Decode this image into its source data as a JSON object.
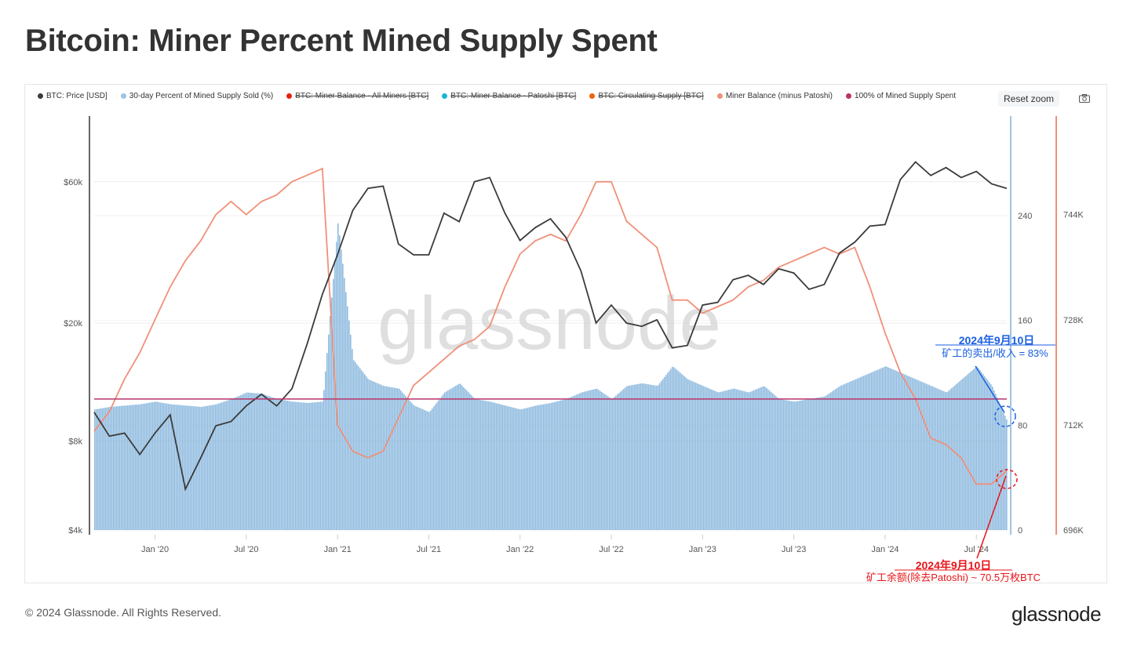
{
  "title": "Bitcoin: Miner Percent Mined Supply Spent",
  "legend": [
    {
      "label": "BTC: Price [USD]",
      "color": "#3b3b3b",
      "hidden": false
    },
    {
      "label": "30-day Percent of Mined Supply Sold (%)",
      "color": "#9ec4e3",
      "hidden": false
    },
    {
      "label": "BTC: Miner Balance - All Miners [BTC]",
      "color": "#e8200e",
      "hidden": true
    },
    {
      "label": "BTC: Miner Balance - Patoshi [BTC]",
      "color": "#19b4d4",
      "hidden": true
    },
    {
      "label": "BTC: Circulating Supply [BTC]",
      "color": "#f06010",
      "hidden": true
    },
    {
      "label": "Miner Balance (minus Patoshi)",
      "color": "#f0907a",
      "hidden": false
    },
    {
      "label": "100% of Mined Supply Spent",
      "color": "#b8336a",
      "hidden": false
    }
  ],
  "toolbar": {
    "reset_zoom": "Reset zoom",
    "camera_icon": "camera-icon"
  },
  "footer": {
    "copyright": "© 2024 Glassnode. All Rights Reserved.",
    "brand": "glassnode"
  },
  "watermark": "glassnode",
  "annotations": {
    "blue": {
      "date": "2024年9月10日",
      "text": "矿工的卖出/收入 = 83%",
      "color": "#1a5fe0"
    },
    "red": {
      "date": "2024年9月10日",
      "text": "矿工余额(除去Patoshi) ~ 70.5万枚BTC",
      "color": "#e8141a"
    }
  },
  "chart_data": {
    "type": "line",
    "x_start": "2019-09",
    "x_unit": "month",
    "x_ticks": [
      "Jan '20",
      "Jul '20",
      "Jan '21",
      "Jul '21",
      "Jan '22",
      "Jul '22",
      "Jan '23",
      "Jul '23",
      "Jan '24",
      "Jul '24"
    ],
    "x_tick_months": [
      4,
      10,
      16,
      22,
      28,
      34,
      40,
      46,
      52,
      58
    ],
    "axes": {
      "price": {
        "scale": "log",
        "ticks": [
          "$4k",
          "$8k",
          "$20k",
          "$60k"
        ],
        "tick_values": [
          4000,
          8000,
          20000,
          60000
        ],
        "range": [
          4000,
          100000
        ]
      },
      "percent": {
        "ticks": [
          "0",
          "80",
          "160",
          "240"
        ],
        "tick_values": [
          0,
          80,
          160,
          240
        ],
        "range": [
          0,
          316
        ]
      },
      "balance": {
        "ticks": [
          "696K",
          "712K",
          "728K",
          "744K"
        ],
        "tick_values": [
          696,
          712,
          728,
          744
        ],
        "range": [
          696,
          759
        ]
      }
    },
    "series": [
      {
        "name": "BTC: Price [USD]",
        "axis": "price",
        "color": "#3b3b3b",
        "values": [
          10000,
          8300,
          8500,
          7200,
          8500,
          9800,
          5500,
          7000,
          9000,
          9300,
          10500,
          11500,
          10500,
          12000,
          17000,
          25000,
          34000,
          48000,
          57000,
          58000,
          37000,
          34000,
          34000,
          47000,
          44000,
          60000,
          62000,
          47000,
          38000,
          42000,
          45000,
          39000,
          30000,
          20000,
          23000,
          20000,
          19500,
          20500,
          16500,
          16800,
          23000,
          23500,
          28000,
          29000,
          27000,
          30500,
          29500,
          26000,
          27000,
          34500,
          37500,
          42500,
          43000,
          61000,
          70000,
          63000,
          67000,
          62000,
          65000,
          59000,
          57000
        ]
      },
      {
        "name": "30-day Percent of Mined Supply Sold (%)",
        "axis": "percent",
        "color": "#8fbbdf",
        "values": [
          92,
          94,
          95,
          96,
          98,
          96,
          95,
          94,
          96,
          100,
          105,
          104,
          100,
          98,
          97,
          98,
          235,
          130,
          115,
          110,
          108,
          95,
          90,
          105,
          112,
          100,
          98,
          95,
          92,
          95,
          97,
          100,
          105,
          108,
          100,
          110,
          112,
          110,
          125,
          115,
          110,
          105,
          108,
          105,
          110,
          100,
          98,
          100,
          102,
          110,
          115,
          120,
          125,
          120,
          115,
          110,
          105,
          115,
          125,
          110,
          83
        ]
      },
      {
        "name": "Miner Balance (minus Patoshi)",
        "axis": "balance",
        "unit": "K BTC",
        "color": "#f0907a",
        "values": [
          711,
          714,
          719,
          723,
          728,
          733,
          737,
          740,
          744,
          746,
          744,
          746,
          747,
          749,
          750,
          751,
          712,
          708,
          707,
          708,
          713,
          718,
          720,
          722,
          724,
          725,
          727,
          733,
          738,
          740,
          741,
          740,
          744,
          749,
          749,
          743,
          741,
          739,
          731,
          731,
          729,
          730,
          731,
          733,
          734,
          736,
          737,
          738,
          739,
          738,
          739,
          733,
          726,
          720,
          716,
          710,
          709,
          707,
          703,
          703,
          705
        ]
      },
      {
        "name": "100% of Mined Supply Spent",
        "axis": "percent",
        "color": "#b8336a",
        "values": [
          100
        ]
      }
    ]
  }
}
